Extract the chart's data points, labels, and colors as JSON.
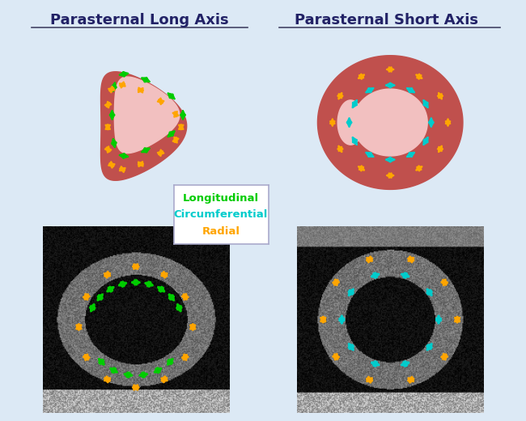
{
  "title": "Parasternal Long Axis vs Parasternal Short Axis diagram",
  "background_color": "#dce9f5",
  "panel_bg": "#dce9f5",
  "heart_outer_color": "#c0504d",
  "heart_inner_color": "#f2c0c0",
  "text_left": "Parasternal Long Axis",
  "text_right": "Parasternal Short Axis",
  "legend_green": "Longitudinal",
  "legend_cyan": "Circumferential",
  "legend_orange": "Radial",
  "green_color": "#00cc00",
  "cyan_color": "#00cccc",
  "orange_color": "#ffa500",
  "title_fontsize": 13,
  "legend_fontsize": 11
}
